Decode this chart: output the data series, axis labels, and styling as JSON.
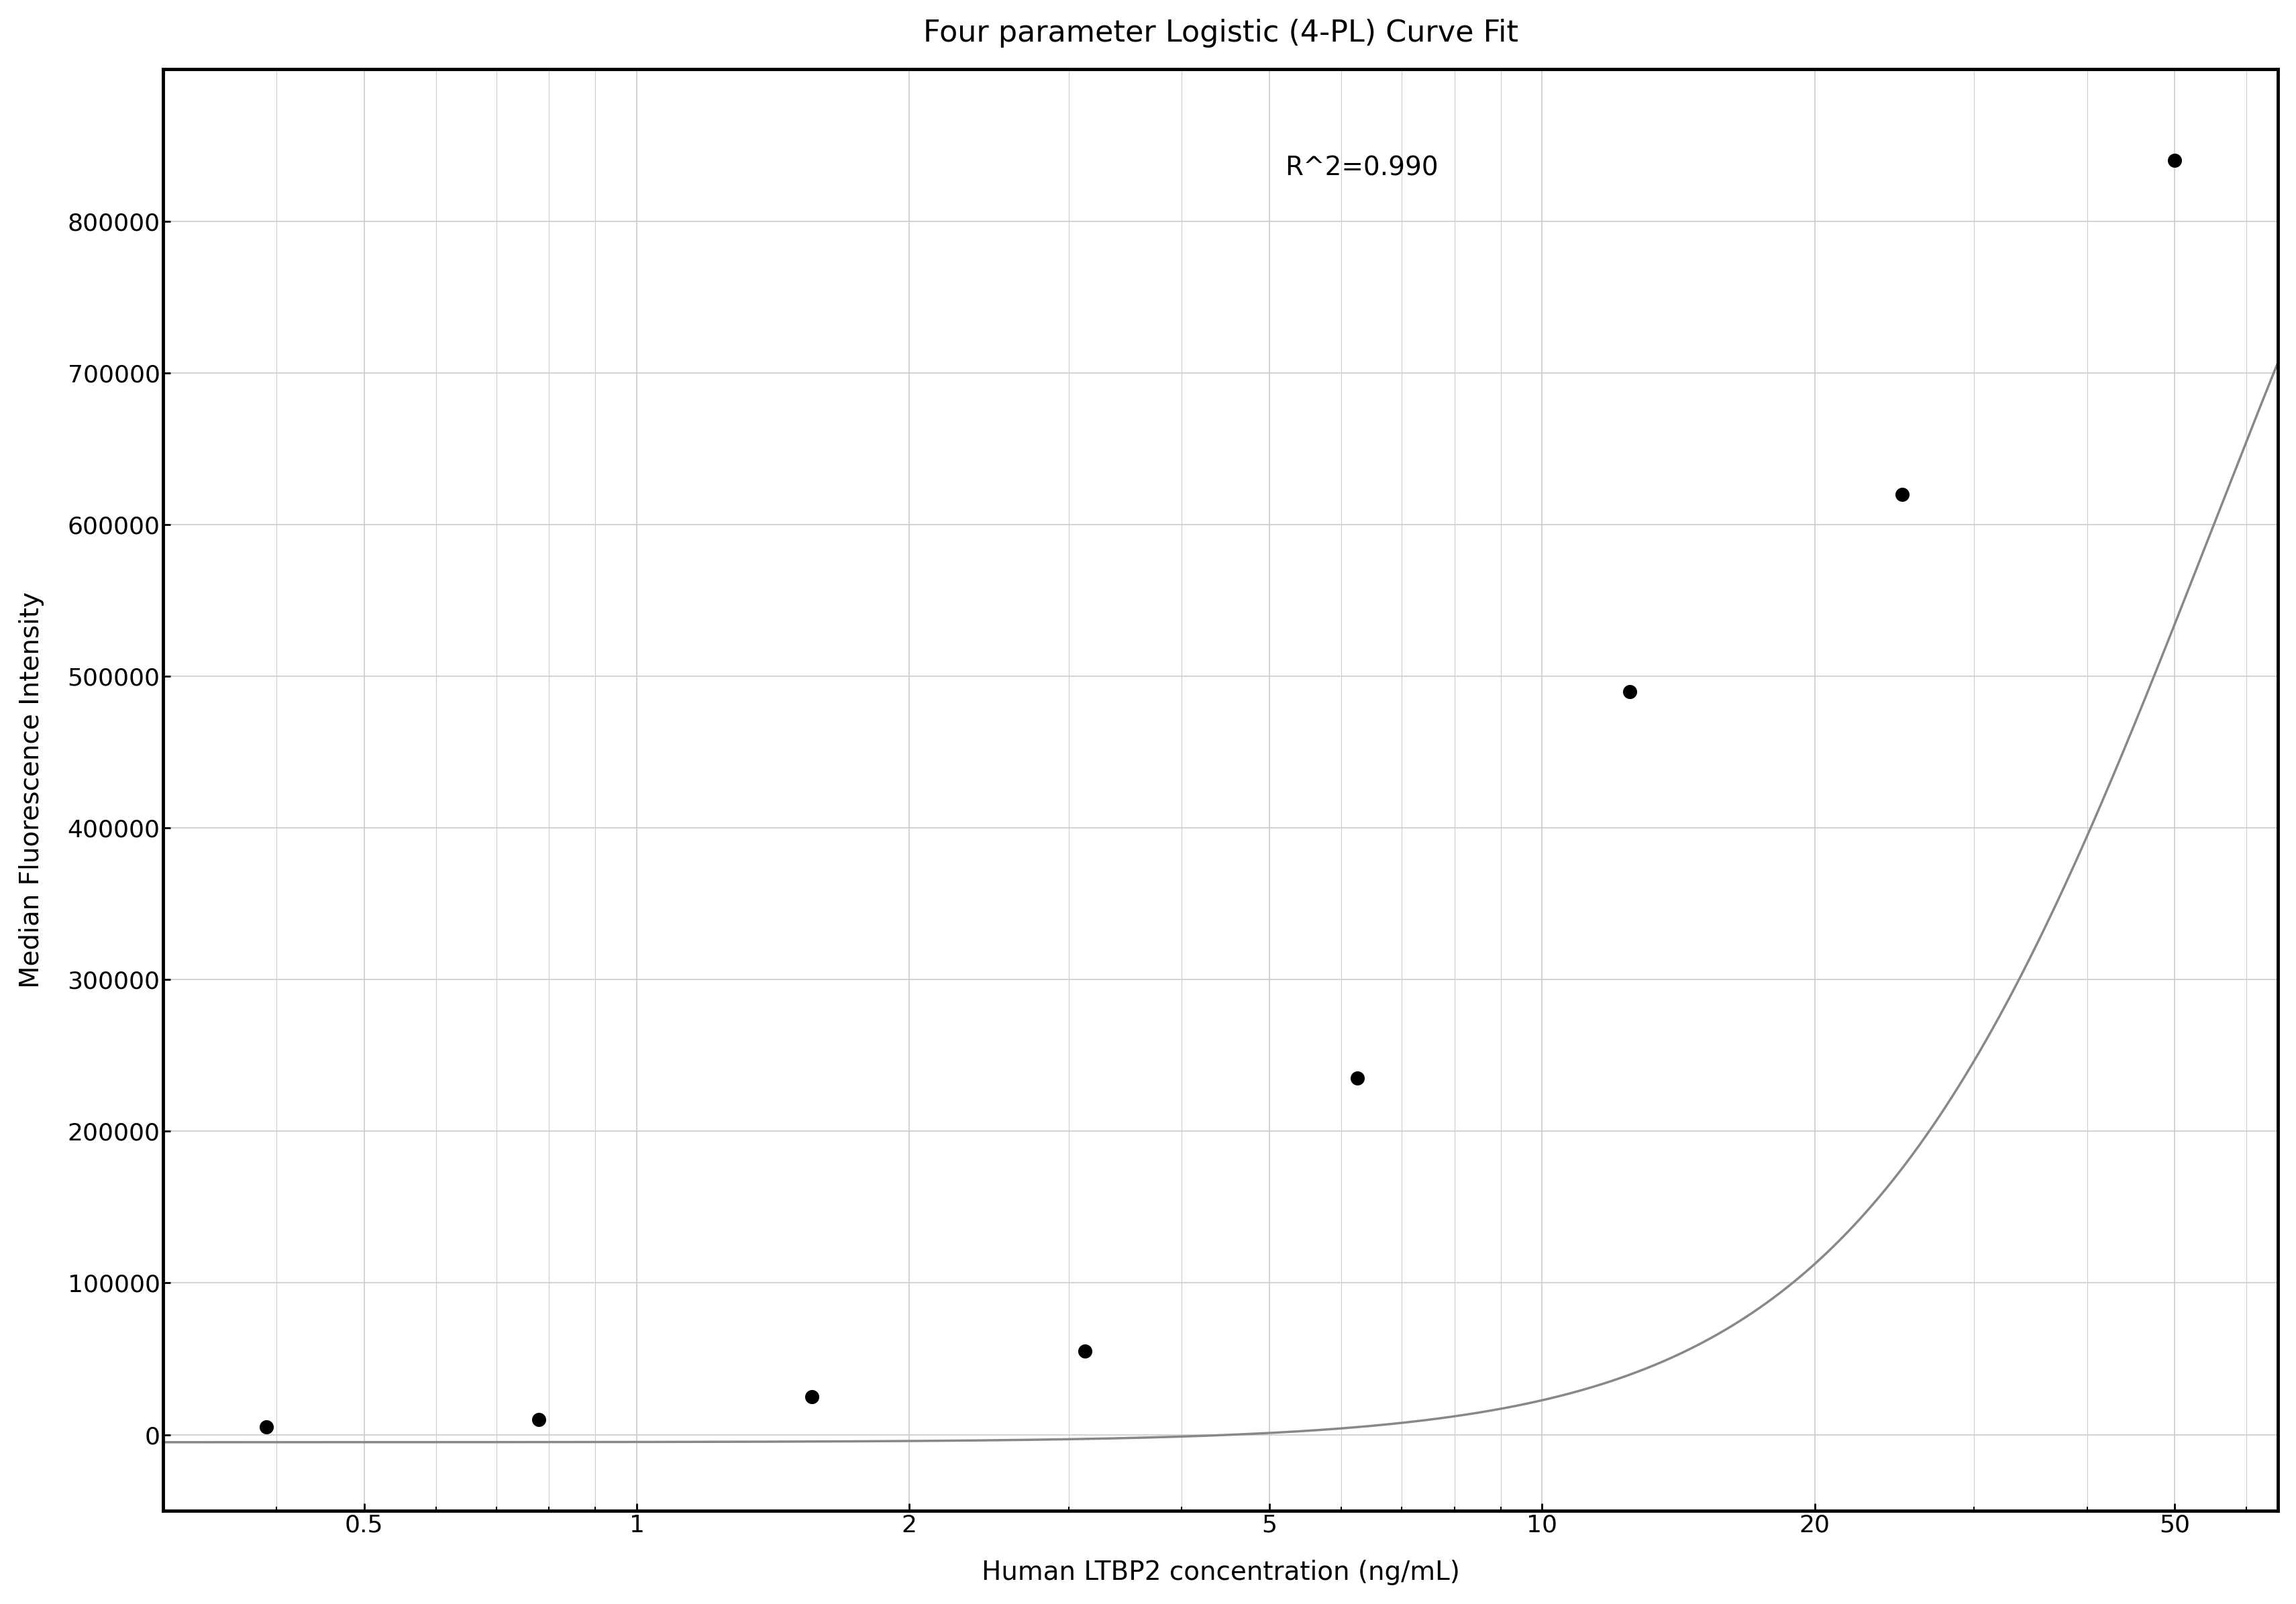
{
  "title": "Four parameter Logistic (4-PL) Curve Fit",
  "xlabel": "Human LTBP2 concentration (ng/mL)",
  "ylabel": "Median Fluorescence Intensity",
  "r_squared_text": "R^2=0.990",
  "data_x": [
    0.39,
    0.78,
    1.56,
    3.125,
    6.25,
    12.5,
    25,
    50
  ],
  "data_y": [
    5000,
    10000,
    25000,
    55000,
    235000,
    490000,
    620000,
    840000
  ],
  "xlim_log": [
    0.3,
    65
  ],
  "ylim": [
    -50000,
    900000
  ],
  "yticks": [
    0,
    100000,
    200000,
    300000,
    400000,
    500000,
    600000,
    700000,
    800000
  ],
  "xticks": [
    0.5,
    1,
    2,
    5,
    10,
    20,
    50
  ],
  "curve_color": "#888888",
  "dot_color": "#000000",
  "background_color": "#ffffff",
  "grid_color": "#cccccc",
  "title_fontsize": 32,
  "label_fontsize": 28,
  "tick_fontsize": 26,
  "annotation_fontsize": 28,
  "4pl_A": -5000,
  "4pl_B": 2.2,
  "4pl_C": 55.0,
  "4pl_D": 1200000
}
